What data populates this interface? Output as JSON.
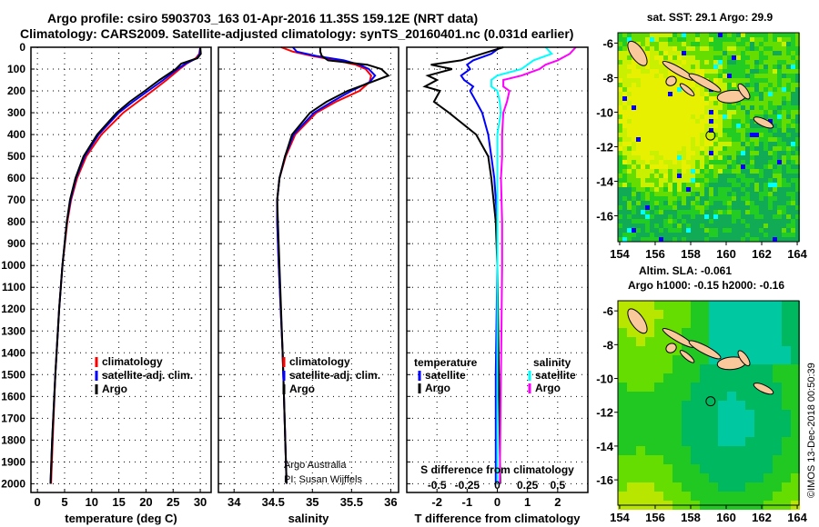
{
  "title_line1": "Argo profile: csiro 5903703_163 01-Apr-2016 11.35S 159.12E (NRT data)",
  "title_line2": "Climatology: CARS2009. Satellite-adjusted climatology: synTS_20160401.nc (0.031d earlier)",
  "colors": {
    "climatology": "#ff0000",
    "satellite": "#0000ff",
    "argo": "#000000",
    "sal_satellite": "#00ffff",
    "sal_argo": "#ff00ff",
    "land": "#f9c89b"
  },
  "chart_data": [
    {
      "type": "line",
      "name": "temperature",
      "xlabel": "temperature (deg C)",
      "ylim": [
        2040,
        0
      ],
      "xlim": [
        -1.2,
        32
      ],
      "xticks": [
        0,
        5,
        10,
        15,
        20,
        25,
        30
      ],
      "yticks": [
        0,
        100,
        200,
        300,
        400,
        500,
        600,
        700,
        800,
        900,
        1000,
        1100,
        1200,
        1300,
        1400,
        1500,
        1600,
        1700,
        1800,
        1900,
        2000
      ],
      "legend": [
        "climatology",
        "satellite-adj. clim.",
        "Argo"
      ],
      "depth": [
        0,
        30,
        50,
        75,
        100,
        150,
        200,
        250,
        300,
        400,
        500,
        600,
        700,
        800,
        1000,
        1200,
        1500,
        1800,
        2000
      ],
      "series": [
        {
          "name": "climatology",
          "color": "#ff0000",
          "values": [
            30,
            29.8,
            29.2,
            27.5,
            26.2,
            23.8,
            21.2,
            18.5,
            15.8,
            11.8,
            9.0,
            7.3,
            6.2,
            5.5,
            4.6,
            4.0,
            3.3,
            2.8,
            2.5
          ]
        },
        {
          "name": "satellite-adj. clim.",
          "color": "#0000ff",
          "values": [
            30,
            29.9,
            29.4,
            27.3,
            25.8,
            23.2,
            20.4,
            17.6,
            15.0,
            11.3,
            8.7,
            7.1,
            6.1,
            5.4,
            4.6,
            4.0,
            3.3,
            2.7,
            2.4
          ]
        },
        {
          "name": "Argo",
          "color": "#000000",
          "values": [
            30,
            30.1,
            29.5,
            26.5,
            25.5,
            22.5,
            19.8,
            17.0,
            14.6,
            11.0,
            8.5,
            7.0,
            6.0,
            5.4,
            4.6,
            4.0,
            3.3,
            2.7,
            2.4
          ]
        }
      ]
    },
    {
      "type": "line",
      "name": "salinity",
      "xlabel": "salinity",
      "ylim": [
        2040,
        0
      ],
      "xlim": [
        33.8,
        36.1
      ],
      "xticks": [
        34,
        34.5,
        35,
        35.5,
        36
      ],
      "xtick_labels": [
        "34",
        "34.5",
        "35",
        "35.5",
        "36"
      ],
      "legend": [
        "climatology",
        "satellite-adj. clim.",
        "Argo"
      ],
      "annotation": [
        "Argo Australia",
        "PI: Susan Wijffels"
      ],
      "depth": [
        0,
        20,
        40,
        60,
        80,
        100,
        130,
        160,
        200,
        250,
        300,
        400,
        500,
        600,
        700,
        800,
        1000,
        1400,
        2000
      ],
      "series": [
        {
          "name": "climatology",
          "color": "#ff0000",
          "values": [
            34.6,
            34.75,
            35.0,
            35.3,
            35.55,
            35.68,
            35.75,
            35.73,
            35.6,
            35.3,
            35.05,
            34.78,
            34.66,
            34.58,
            34.55,
            34.55,
            34.57,
            34.62,
            34.67
          ]
        },
        {
          "name": "satellite-adj. clim.",
          "color": "#0000ff",
          "values": [
            34.75,
            34.8,
            35.05,
            35.4,
            35.6,
            35.72,
            35.8,
            35.73,
            35.5,
            35.25,
            35.02,
            34.76,
            34.65,
            34.58,
            34.55,
            34.55,
            34.57,
            34.62,
            34.67
          ]
        },
        {
          "name": "Argo",
          "color": "#000000",
          "values": [
            35.1,
            35.1,
            35.12,
            35.2,
            35.7,
            35.88,
            35.97,
            35.75,
            35.45,
            35.18,
            34.97,
            34.74,
            34.65,
            34.58,
            34.55,
            34.56,
            34.58,
            34.62,
            34.67
          ]
        }
      ]
    },
    {
      "type": "line",
      "name": "difference",
      "xlabel": "T difference from climatology",
      "x2label": "S difference from climatology",
      "ylim": [
        2040,
        0
      ],
      "xlim": [
        -3,
        3
      ],
      "xticks": [
        -2,
        -1,
        0,
        1,
        2
      ],
      "x2ticks": [
        -0.5,
        -0.25,
        0,
        0.25,
        0.5
      ],
      "x2tick_labels": [
        "-0.5",
        "-0.25",
        "0",
        "0.25",
        "0.5"
      ],
      "legend_left_title": "temperature",
      "legend_right_title": "salinity",
      "legend": [
        "satellite",
        "Argo",
        "satellite",
        "Argo"
      ],
      "depth": [
        0,
        30,
        60,
        80,
        100,
        130,
        150,
        180,
        200,
        250,
        300,
        400,
        500,
        600,
        800,
        1000,
        1500,
        2000
      ],
      "series": [
        {
          "name": "T satellite",
          "color": "#0000ff",
          "values": [
            0.1,
            -0.2,
            -0.8,
            -1.0,
            -0.9,
            -1.2,
            -1.1,
            -0.8,
            -0.9,
            -0.7,
            -0.5,
            -0.3,
            -0.2,
            -0.1,
            0,
            0,
            -0.05,
            -0.05
          ]
        },
        {
          "name": "T Argo",
          "color": "#000000",
          "values": [
            0.2,
            -0.5,
            -1.2,
            -2.2,
            -1.5,
            -2.3,
            -2.0,
            -2.4,
            -1.9,
            -2.1,
            -1.6,
            -0.7,
            -0.3,
            -0.2,
            -0.05,
            0,
            0.05,
            0.1
          ]
        },
        {
          "name": "S satellite",
          "color": "#00ffff",
          "values": [
            0.4,
            0.45,
            0.3,
            0.25,
            0.2,
            0.0,
            -0.05,
            -0.05,
            0.0,
            0.02,
            0.03,
            0.0,
            0.0,
            0.0,
            0.0,
            0.0,
            0.0,
            0.0
          ]
        },
        {
          "name": "S Argo",
          "color": "#ff00ff",
          "values": [
            0.65,
            0.6,
            0.5,
            0.4,
            0.35,
            0.2,
            0.05,
            0.05,
            0.1,
            0.08,
            0.05,
            0.04,
            0.04,
            0.03,
            0.04,
            0.04,
            0.03,
            0.02
          ]
        }
      ]
    },
    {
      "type": "heatmap",
      "name": "sst-map",
      "title": "sat. SST: 29.1 Argo: 29.9",
      "xticks": [
        154,
        156,
        158,
        160,
        162,
        164
      ],
      "yticks": [
        -6,
        -8,
        -10,
        -12,
        -14,
        -16
      ],
      "xlim": [
        153.9,
        164.1
      ],
      "ylim": [
        -17.5,
        -5.4
      ],
      "argo_position": [
        159.12,
        -11.35
      ]
    },
    {
      "type": "heatmap",
      "name": "sla-map",
      "title": "Altim. SLA: -0.061",
      "subtitle": "Argo h1000: -0.15 h2000: -0.16",
      "xticks": [
        154,
        156,
        158,
        160,
        162,
        164
      ],
      "yticks": [
        -6,
        -8,
        -10,
        -12,
        -14,
        -16
      ],
      "xlim": [
        153.9,
        164.1
      ],
      "ylim": [
        -17.5,
        -5.4
      ],
      "argo_position": [
        159.12,
        -11.35
      ]
    }
  ],
  "credit": "©IMOS 13-Dec-2018 00:50:39"
}
